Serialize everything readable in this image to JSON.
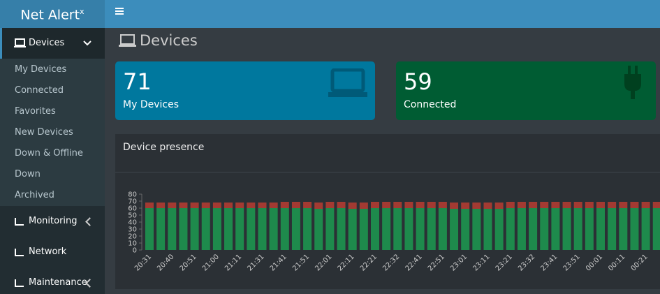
{
  "brand": {
    "name": "Net Alert",
    "sup": "x"
  },
  "sidebar": {
    "active": "Devices",
    "submenu": [
      "My Devices",
      "Connected",
      "Favorites",
      "New Devices",
      "Down & Offline",
      "Down",
      "Archived"
    ],
    "items": [
      "Monitoring",
      "Network",
      "Maintenance"
    ]
  },
  "page": {
    "title": "Devices"
  },
  "cards": [
    {
      "value": "71",
      "label": "My Devices"
    },
    {
      "value": "59",
      "label": "Connected"
    }
  ],
  "panel": {
    "title": "Device presence"
  },
  "chart_data": {
    "type": "stacked_bar",
    "categories": [
      "20:31",
      null,
      "20:40",
      null,
      "20:51",
      null,
      "21:00",
      null,
      "21:11",
      null,
      "21:31",
      null,
      "21:41",
      null,
      "21:51",
      null,
      "22:01",
      null,
      "22:11",
      null,
      "22:21",
      null,
      "22:32",
      null,
      "22:41",
      null,
      "22:51",
      null,
      "23:01",
      null,
      "23:11",
      null,
      "23:21",
      null,
      "23:32",
      null,
      "23:41",
      null,
      "23:51",
      null,
      "00:01",
      null,
      "00:11",
      null,
      "00:21",
      null
    ],
    "series": [
      {
        "color": "#1e8a4c",
        "values": [
          60,
          60,
          60,
          60,
          60,
          60,
          60,
          60,
          60,
          60,
          60,
          60,
          60,
          60,
          60,
          59,
          60,
          60,
          59,
          59,
          60,
          60,
          60,
          60,
          60,
          60,
          60,
          59,
          59,
          59,
          59,
          59,
          60,
          60,
          60,
          60,
          60,
          60,
          60,
          60,
          60,
          60,
          60,
          60,
          60,
          60
        ]
      },
      {
        "color": "#a33a32",
        "values": [
          8,
          8,
          8,
          8,
          8,
          8,
          8,
          8,
          8,
          8,
          8,
          8,
          9,
          9,
          9,
          9,
          9,
          9,
          9,
          9,
          9,
          9,
          9,
          9,
          9,
          9,
          9,
          9,
          9,
          9,
          9,
          9,
          9,
          9,
          9,
          9,
          9,
          9,
          9,
          9,
          9,
          9,
          9,
          9,
          9,
          9
        ]
      }
    ],
    "ylim": [
      0,
      80
    ],
    "yticks": [
      0,
      10,
      20,
      30,
      40,
      50,
      60,
      70,
      80
    ]
  }
}
